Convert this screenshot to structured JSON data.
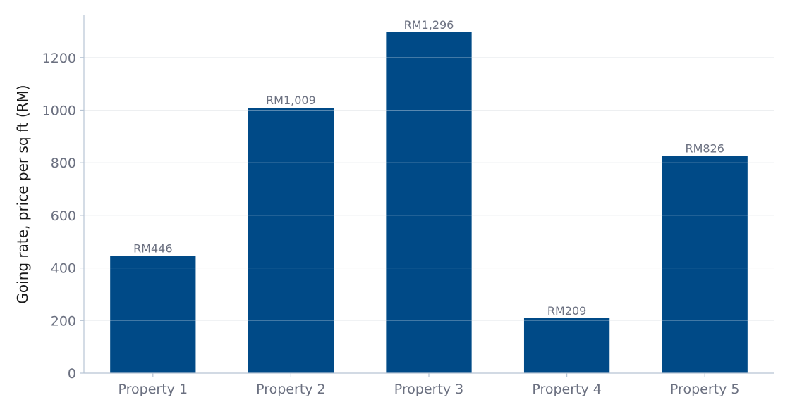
{
  "chart_data": {
    "type": "bar",
    "categories": [
      "Property 1",
      "Property 2",
      "Property 3",
      "Property 4",
      "Property 5"
    ],
    "values": [
      446,
      1009,
      1296,
      209,
      826
    ],
    "data_labels": [
      "RM446",
      "RM1,009",
      "RM1,296",
      "RM209",
      "RM826"
    ],
    "title": "",
    "xlabel": "",
    "ylabel": "Going rate, price per sq ft (RM)",
    "ylim": [
      0,
      1360
    ],
    "yticks": [
      0,
      200,
      400,
      600,
      800,
      1000,
      1200
    ],
    "grid": "horizontal",
    "legend": "none",
    "colors": {
      "bar": "#004a87",
      "grid": "#e3e6ea",
      "axis": "#b7c4d4",
      "text": "#6b7080"
    }
  }
}
